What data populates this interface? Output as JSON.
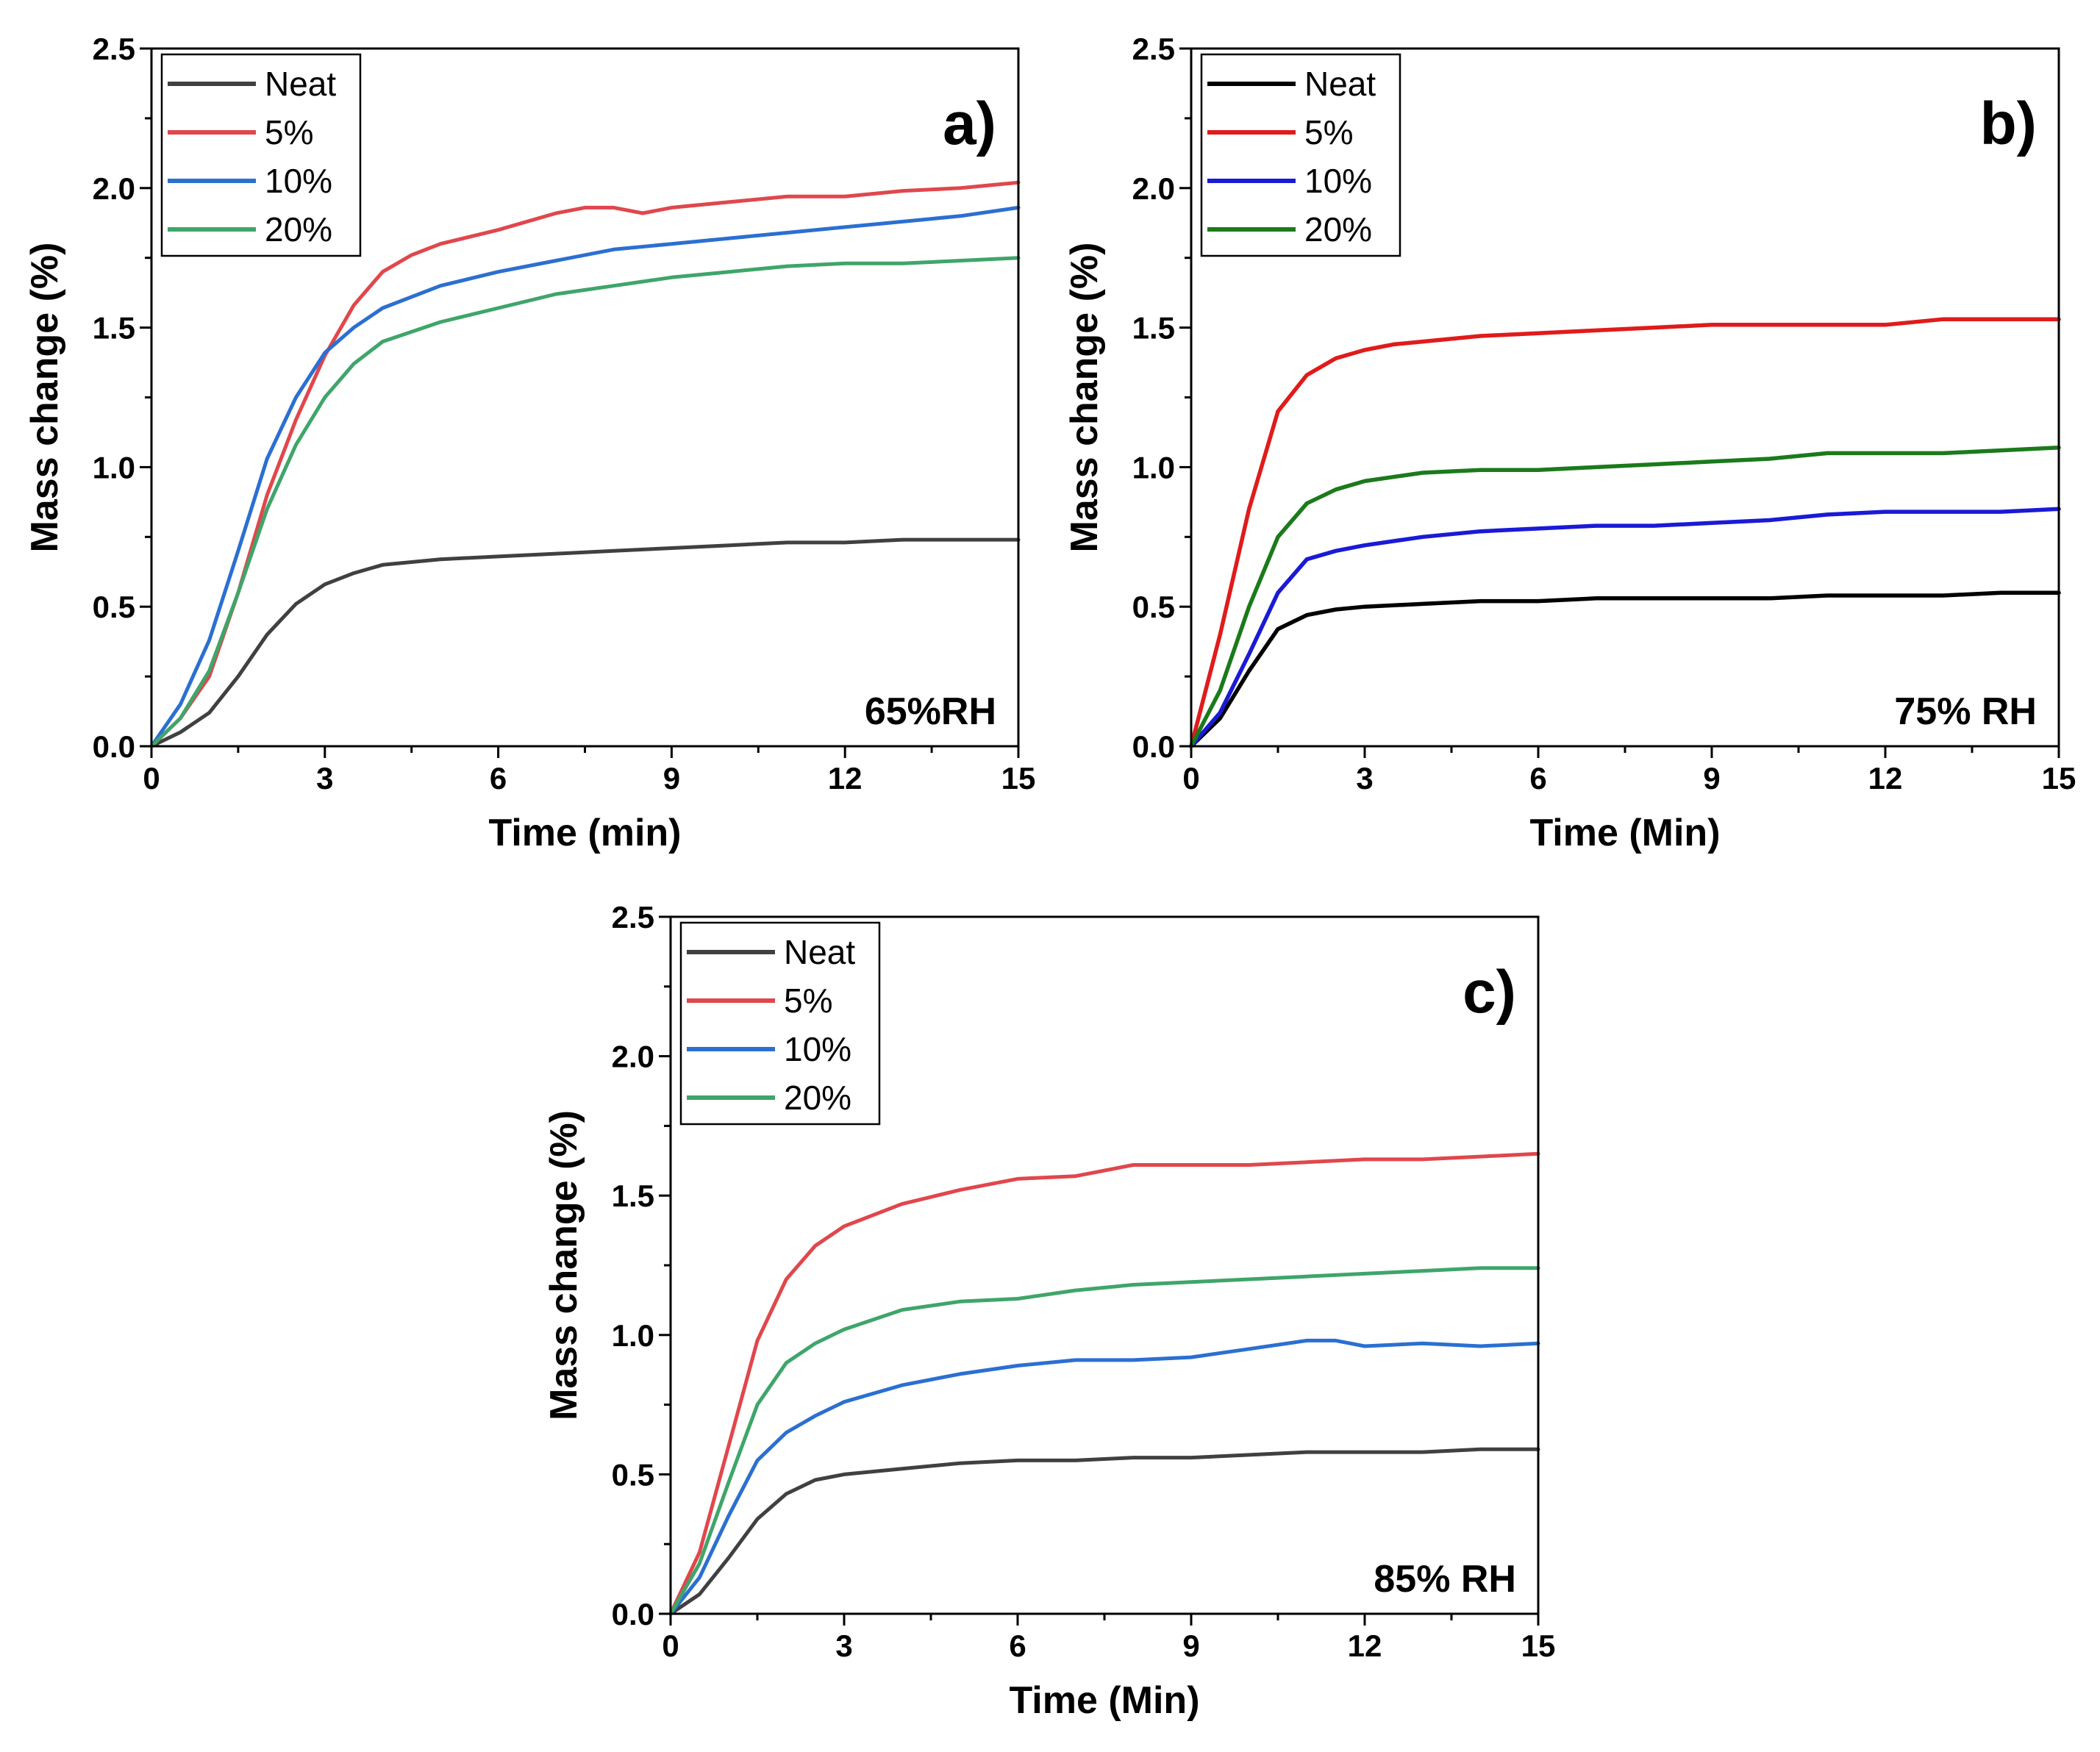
{
  "chart_data": [
    {
      "type": "line",
      "panel": "a)",
      "annotation": "65%RH",
      "xlabel": "Time (min)",
      "ylabel": "Mass change (%)",
      "xlim": [
        0,
        15
      ],
      "ylim": [
        0,
        2.5
      ],
      "xticks": [
        0,
        3,
        6,
        9,
        12,
        15
      ],
      "yticks": [
        0.0,
        0.5,
        1.0,
        1.5,
        2.0,
        2.5
      ],
      "xtick_labels": [
        "0",
        "3",
        "6",
        "9",
        "12",
        "15"
      ],
      "ytick_labels": [
        "0.0",
        "0.5",
        "1.0",
        "1.5",
        "2.0",
        "2.5"
      ],
      "legend_position": "top-left",
      "grid": false,
      "series": [
        {
          "name": "Neat",
          "color": "#404040",
          "x": [
            0,
            0.5,
            1,
            1.5,
            2,
            2.5,
            3,
            3.5,
            4,
            5,
            6,
            7,
            8,
            9,
            10,
            11,
            12,
            13,
            14,
            15
          ],
          "y": [
            0,
            0.05,
            0.12,
            0.25,
            0.4,
            0.51,
            0.58,
            0.62,
            0.65,
            0.67,
            0.68,
            0.69,
            0.7,
            0.71,
            0.72,
            0.73,
            0.73,
            0.74,
            0.74,
            0.74
          ]
        },
        {
          "name": "5%",
          "color": "#e0474c",
          "x": [
            0,
            0.5,
            1,
            1.5,
            2,
            2.5,
            3,
            3.5,
            4,
            4.5,
            5,
            6,
            7,
            7.5,
            8,
            8.5,
            9,
            10,
            11,
            12,
            13,
            14,
            15
          ],
          "y": [
            0,
            0.1,
            0.25,
            0.55,
            0.9,
            1.17,
            1.4,
            1.58,
            1.7,
            1.76,
            1.8,
            1.85,
            1.91,
            1.93,
            1.93,
            1.91,
            1.93,
            1.95,
            1.97,
            1.97,
            1.99,
            2.0,
            2.02
          ]
        },
        {
          "name": "10%",
          "color": "#2b6fd1",
          "x": [
            0,
            0.5,
            1,
            1.5,
            2,
            2.5,
            3,
            3.5,
            4,
            5,
            6,
            7,
            8,
            9,
            10,
            11,
            12,
            13,
            14,
            15
          ],
          "y": [
            0,
            0.15,
            0.38,
            0.7,
            1.03,
            1.25,
            1.41,
            1.5,
            1.57,
            1.65,
            1.7,
            1.74,
            1.78,
            1.8,
            1.82,
            1.84,
            1.86,
            1.88,
            1.9,
            1.93
          ]
        },
        {
          "name": "20%",
          "color": "#3fa56a",
          "x": [
            0,
            0.5,
            1,
            1.5,
            2,
            2.5,
            3,
            3.5,
            4,
            5,
            6,
            7,
            8,
            9,
            10,
            11,
            12,
            13,
            14,
            15
          ],
          "y": [
            0,
            0.1,
            0.27,
            0.55,
            0.85,
            1.08,
            1.25,
            1.37,
            1.45,
            1.52,
            1.57,
            1.62,
            1.65,
            1.68,
            1.7,
            1.72,
            1.73,
            1.73,
            1.74,
            1.75
          ]
        }
      ]
    },
    {
      "type": "line",
      "panel": "b)",
      "annotation": "75% RH",
      "xlabel": "Time (Min)",
      "ylabel": "Mass change (%)",
      "xlim": [
        0,
        15
      ],
      "ylim": [
        0,
        2.5
      ],
      "xticks": [
        0,
        3,
        6,
        9,
        12,
        15
      ],
      "yticks": [
        0.0,
        0.5,
        1.0,
        1.5,
        2.0,
        2.5
      ],
      "xtick_labels": [
        "0",
        "3",
        "6",
        "9",
        "12",
        "15"
      ],
      "ytick_labels": [
        "0.0",
        "0.5",
        "1.0",
        "1.5",
        "2.0",
        "2.5"
      ],
      "legend_position": "top-left",
      "grid": false,
      "series": [
        {
          "name": "Neat",
          "color": "#000000",
          "x": [
            0,
            0.5,
            1,
            1.5,
            2,
            2.5,
            3,
            4,
            5,
            6,
            7,
            8,
            9,
            10,
            11,
            12,
            13,
            14,
            15
          ],
          "y": [
            0,
            0.1,
            0.27,
            0.42,
            0.47,
            0.49,
            0.5,
            0.51,
            0.52,
            0.52,
            0.53,
            0.53,
            0.53,
            0.53,
            0.54,
            0.54,
            0.54,
            0.55,
            0.55
          ]
        },
        {
          "name": "5%",
          "color": "#e01b1b",
          "x": [
            0,
            0.5,
            1,
            1.5,
            2,
            2.5,
            3,
            3.5,
            4,
            5,
            6,
            7,
            8,
            9,
            10,
            11,
            12,
            13,
            14,
            15
          ],
          "y": [
            0,
            0.4,
            0.85,
            1.2,
            1.33,
            1.39,
            1.42,
            1.44,
            1.45,
            1.47,
            1.48,
            1.49,
            1.5,
            1.51,
            1.51,
            1.51,
            1.51,
            1.53,
            1.53,
            1.53
          ]
        },
        {
          "name": "10%",
          "color": "#1a1ad6",
          "x": [
            0,
            0.5,
            1,
            1.5,
            2,
            2.5,
            3,
            4,
            5,
            6,
            7,
            8,
            9,
            10,
            11,
            12,
            13,
            14,
            15
          ],
          "y": [
            0,
            0.12,
            0.33,
            0.55,
            0.67,
            0.7,
            0.72,
            0.75,
            0.77,
            0.78,
            0.79,
            0.79,
            0.8,
            0.81,
            0.83,
            0.84,
            0.84,
            0.84,
            0.85
          ]
        },
        {
          "name": "20%",
          "color": "#1b7a1b",
          "x": [
            0,
            0.5,
            1,
            1.5,
            2,
            2.5,
            3,
            4,
            5,
            6,
            7,
            8,
            9,
            10,
            11,
            12,
            13,
            14,
            15
          ],
          "y": [
            0,
            0.2,
            0.5,
            0.75,
            0.87,
            0.92,
            0.95,
            0.98,
            0.99,
            0.99,
            1.0,
            1.01,
            1.02,
            1.03,
            1.05,
            1.05,
            1.05,
            1.06,
            1.07
          ]
        }
      ]
    },
    {
      "type": "line",
      "panel": "c)",
      "annotation": "85% RH",
      "xlabel": "Time (Min)",
      "ylabel": "Mass change (%)",
      "xlim": [
        0,
        15
      ],
      "ylim": [
        0,
        2.5
      ],
      "xticks": [
        0,
        3,
        6,
        9,
        12,
        15
      ],
      "yticks": [
        0.0,
        0.5,
        1.0,
        1.5,
        2.0,
        2.5
      ],
      "xtick_labels": [
        "0",
        "3",
        "6",
        "9",
        "12",
        "15"
      ],
      "ytick_labels": [
        "0.0",
        "0.5",
        "1.0",
        "1.5",
        "2.0",
        "2.5"
      ],
      "legend_position": "top-left",
      "grid": false,
      "series": [
        {
          "name": "Neat",
          "color": "#404040",
          "x": [
            0,
            0.5,
            1,
            1.5,
            2,
            2.5,
            3,
            4,
            5,
            6,
            7,
            8,
            9,
            10,
            11,
            12,
            13,
            14,
            15
          ],
          "y": [
            0,
            0.07,
            0.2,
            0.34,
            0.43,
            0.48,
            0.5,
            0.52,
            0.54,
            0.55,
            0.55,
            0.56,
            0.56,
            0.57,
            0.58,
            0.58,
            0.58,
            0.59,
            0.59
          ]
        },
        {
          "name": "5%",
          "color": "#e0474c",
          "x": [
            0,
            0.5,
            1,
            1.5,
            2,
            2.5,
            3,
            4,
            5,
            6,
            7,
            8,
            9,
            10,
            11,
            12,
            13,
            14,
            15
          ],
          "y": [
            0,
            0.22,
            0.6,
            0.98,
            1.2,
            1.32,
            1.39,
            1.47,
            1.52,
            1.56,
            1.57,
            1.61,
            1.61,
            1.61,
            1.62,
            1.63,
            1.63,
            1.64,
            1.65
          ]
        },
        {
          "name": "10%",
          "color": "#2b6fd1",
          "x": [
            0,
            0.5,
            1,
            1.5,
            2,
            2.5,
            3,
            4,
            5,
            6,
            7,
            8,
            9,
            10,
            11,
            11.5,
            12,
            13,
            14,
            15
          ],
          "y": [
            0,
            0.13,
            0.35,
            0.55,
            0.65,
            0.71,
            0.76,
            0.82,
            0.86,
            0.89,
            0.91,
            0.91,
            0.92,
            0.95,
            0.98,
            0.98,
            0.96,
            0.97,
            0.96,
            0.97
          ]
        },
        {
          "name": "20%",
          "color": "#3fa56a",
          "x": [
            0,
            0.5,
            1,
            1.5,
            2,
            2.5,
            3,
            4,
            5,
            6,
            7,
            8,
            9,
            10,
            11,
            12,
            13,
            14,
            15
          ],
          "y": [
            0,
            0.18,
            0.47,
            0.75,
            0.9,
            0.97,
            1.02,
            1.09,
            1.12,
            1.13,
            1.16,
            1.18,
            1.19,
            1.2,
            1.21,
            1.22,
            1.23,
            1.24,
            1.24
          ]
        }
      ]
    }
  ]
}
